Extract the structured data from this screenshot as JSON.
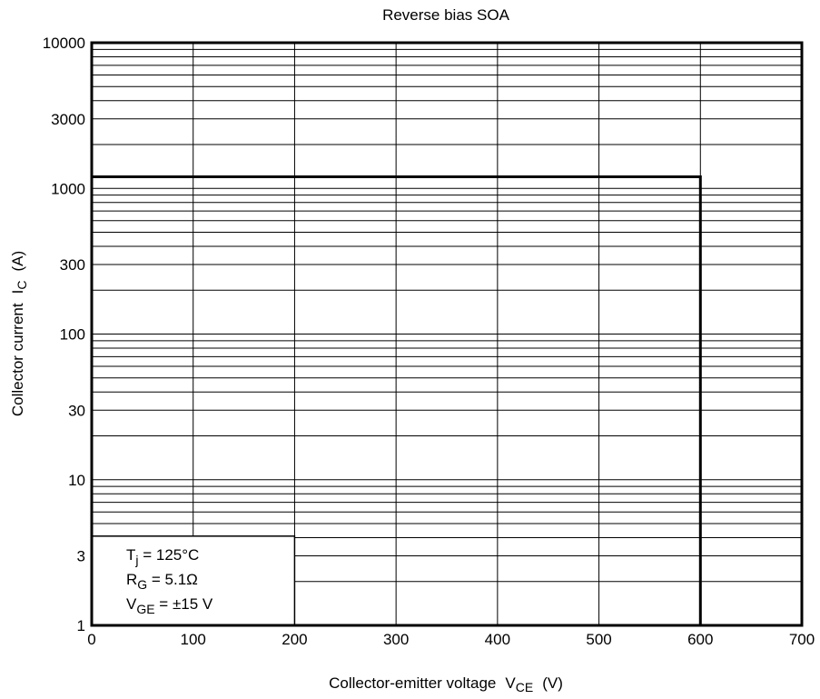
{
  "chart_data": {
    "type": "line",
    "title": "Reverse bias SOA",
    "xlabel": {
      "main": "Collector-emitter voltage",
      "symbol": "V",
      "subscript": "CE",
      "unit": "(V)"
    },
    "ylabel": {
      "main": "Collector current",
      "symbol": "I",
      "subscript": "C",
      "unit": "(A)"
    },
    "xlim": [
      0,
      700
    ],
    "ylim": [
      1,
      10000
    ],
    "y_scale": "log",
    "grid": true,
    "x_ticks": [
      0,
      100,
      200,
      300,
      400,
      500,
      600,
      700
    ],
    "x_tick_labels": [
      "0",
      "100",
      "200",
      "300",
      "400",
      "500",
      "600",
      "700"
    ],
    "y_ticks": [
      1,
      3,
      10,
      30,
      100,
      300,
      1000,
      3000,
      10000
    ],
    "y_tick_labels": [
      "1",
      "3",
      "10",
      "30",
      "100",
      "300",
      "1000",
      "3000",
      "10000"
    ],
    "series": [
      {
        "x": [
          0,
          600,
          600
        ],
        "y": [
          1200,
          1200,
          1
        ]
      }
    ],
    "annotations": [
      {
        "symbol": "T",
        "subscript": "j",
        "rest": " = 125°C"
      },
      {
        "symbol": "R",
        "subscript": "G",
        "rest": " = 5.1Ω"
      },
      {
        "symbol": "V",
        "subscript": "GE",
        "rest": " = ±15 V"
      }
    ]
  }
}
